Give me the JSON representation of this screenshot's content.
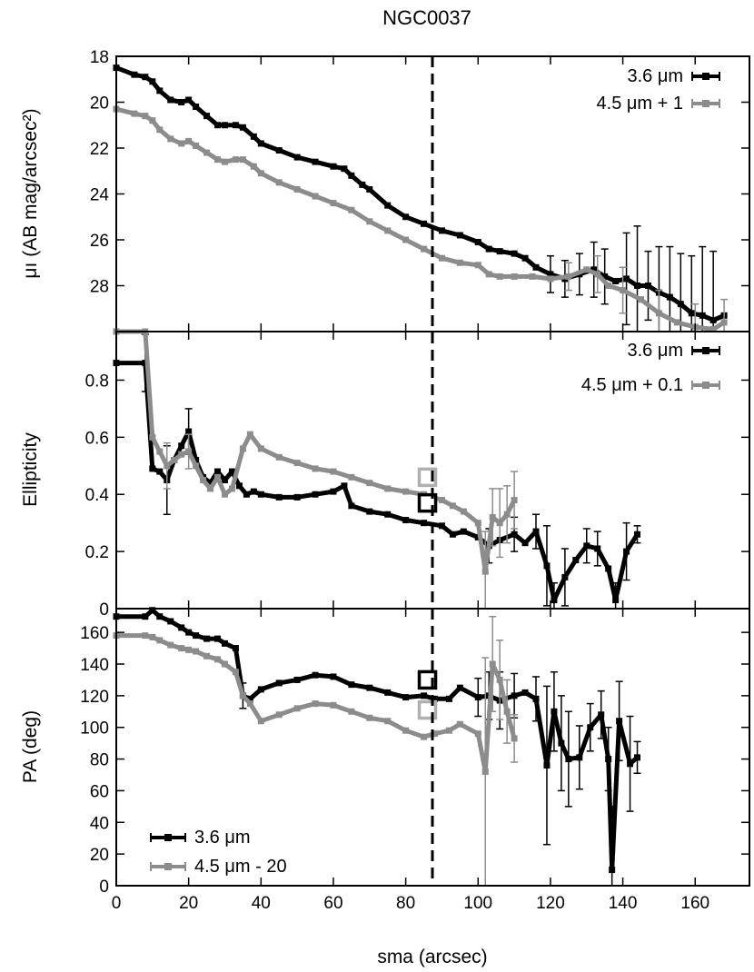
{
  "figure": {
    "title": "NGC0037"
  },
  "colors": {
    "ch1": "#000000",
    "ch2": "#8c8c8c",
    "ch1_box": "#000000",
    "ch2_box": "#b0b0b0"
  },
  "chart_data": [
    {
      "type": "line",
      "panel": "surface-brightness",
      "ylabel": "μı (AB mag/arcsec²)",
      "ylim": [
        30.0,
        18.0
      ],
      "y_inverted": true,
      "yticks": [
        18,
        20,
        22,
        24,
        26,
        28
      ],
      "ytick_labels": [
        "18",
        "20",
        "22",
        "24",
        "26",
        "28"
      ],
      "legend": {
        "position": "top-right",
        "entries": [
          "3.6 μm",
          "4.5 μm + 1"
        ]
      },
      "series": [
        {
          "name": "3.6 μm",
          "color": "#000000",
          "x": [
            0,
            5,
            8,
            10,
            12,
            15,
            18,
            20,
            22,
            25,
            28,
            30,
            33,
            35,
            38,
            40,
            45,
            50,
            55,
            60,
            63,
            65,
            68,
            70,
            75,
            80,
            85,
            90,
            95,
            100,
            103,
            106,
            110,
            113,
            116,
            120,
            124,
            128,
            132,
            135,
            138,
            141,
            144,
            147,
            150,
            153,
            156,
            159,
            162,
            165,
            168
          ],
          "y": [
            18.5,
            18.8,
            18.9,
            19.1,
            19.5,
            19.9,
            20.0,
            19.9,
            20.2,
            20.6,
            21.0,
            21.0,
            21.0,
            21.1,
            21.5,
            21.8,
            22.1,
            22.4,
            22.6,
            22.8,
            22.9,
            23.2,
            23.6,
            23.8,
            24.5,
            25.0,
            25.3,
            25.6,
            25.8,
            26.1,
            26.4,
            26.5,
            26.6,
            26.8,
            27.2,
            27.5,
            27.7,
            27.5,
            27.3,
            27.6,
            27.8,
            27.7,
            28.0,
            28.0,
            28.3,
            28.5,
            28.8,
            29.2,
            29.3,
            29.5,
            29.3
          ],
          "errorbars": [
            {
              "x": 120,
              "y": 27.5,
              "e": 0.8
            },
            {
              "x": 124,
              "y": 27.7,
              "e": 0.8
            },
            {
              "x": 128,
              "y": 27.5,
              "e": 0.9
            },
            {
              "x": 132,
              "y": 27.3,
              "e": 1.2
            },
            {
              "x": 135,
              "y": 27.6,
              "e": 1.2
            },
            {
              "x": 141,
              "y": 27.7,
              "e": 2.0
            },
            {
              "x": 144,
              "y": 28.0,
              "e": 2.6
            },
            {
              "x": 147,
              "y": 28.0,
              "e": 1.5
            },
            {
              "x": 150,
              "y": 28.3,
              "e": 2.0
            },
            {
              "x": 153,
              "y": 28.5,
              "e": 2.2
            },
            {
              "x": 156,
              "y": 28.8,
              "e": 2.2
            },
            {
              "x": 159,
              "y": 29.2,
              "e": 2.5
            },
            {
              "x": 162,
              "y": 29.3,
              "e": 3.0
            },
            {
              "x": 165,
              "y": 29.5,
              "e": 3.0
            }
          ]
        },
        {
          "name": "4.5 μm + 1",
          "color": "#8c8c8c",
          "x": [
            0,
            5,
            8,
            10,
            12,
            15,
            18,
            20,
            22,
            25,
            28,
            30,
            33,
            35,
            38,
            40,
            45,
            50,
            55,
            60,
            65,
            70,
            75,
            80,
            85,
            90,
            95,
            100,
            103,
            106,
            110,
            115,
            120,
            125,
            130,
            133,
            136,
            140,
            145,
            150,
            155,
            160,
            165,
            168
          ],
          "y": [
            20.3,
            20.5,
            20.6,
            20.8,
            21.2,
            21.6,
            21.8,
            21.7,
            21.9,
            22.2,
            22.5,
            22.6,
            22.5,
            22.5,
            22.8,
            23.1,
            23.5,
            23.8,
            24.1,
            24.4,
            24.7,
            25.2,
            25.6,
            26.0,
            26.4,
            26.8,
            27.0,
            27.1,
            27.5,
            27.6,
            27.6,
            27.6,
            27.7,
            27.6,
            27.3,
            27.5,
            28.0,
            28.2,
            28.6,
            29.2,
            29.6,
            29.8,
            29.9,
            29.6
          ],
          "errorbars": [
            {
              "x": 125,
              "y": 27.6,
              "e": 0.6
            },
            {
              "x": 133,
              "y": 27.5,
              "e": 0.8
            },
            {
              "x": 140,
              "y": 28.2,
              "e": 1.0
            },
            {
              "x": 150,
              "y": 29.2,
              "e": 1.0
            },
            {
              "x": 160,
              "y": 29.8,
              "e": 1.0
            },
            {
              "x": 168,
              "y": 29.6,
              "e": 1.0
            }
          ]
        }
      ]
    },
    {
      "type": "line",
      "panel": "ellipticity",
      "ylabel": "Ellipticity",
      "ylim": [
        0.0,
        0.97
      ],
      "yticks": [
        0,
        0.2,
        0.4,
        0.6,
        0.8
      ],
      "ytick_labels": [
        "0",
        "0.2",
        "0.4",
        "0.6",
        "0.8"
      ],
      "legend": {
        "position": "top-right",
        "entries": [
          "3.6 μm",
          "4.5 μm + 0.1"
        ]
      },
      "markers": [
        {
          "x": 86,
          "y": 0.37,
          "series": "3.6 μm"
        },
        {
          "x": 86,
          "y": 0.46,
          "series": "4.5 μm + 0.1"
        }
      ],
      "series": [
        {
          "name": "3.6 μm",
          "color": "#000000",
          "x": [
            0,
            8,
            10,
            12,
            14,
            16,
            18,
            20,
            22,
            24,
            26,
            28,
            30,
            32,
            34,
            36,
            38,
            40,
            45,
            50,
            55,
            60,
            63,
            65,
            70,
            75,
            80,
            85,
            90,
            93,
            96,
            100,
            103,
            106,
            110,
            113,
            116,
            119,
            121,
            124,
            127,
            130,
            133,
            136,
            138,
            141,
            144
          ],
          "y": [
            0.86,
            0.86,
            0.49,
            0.48,
            0.45,
            0.52,
            0.57,
            0.62,
            0.52,
            0.46,
            0.44,
            0.48,
            0.45,
            0.48,
            0.43,
            0.4,
            0.41,
            0.4,
            0.39,
            0.39,
            0.4,
            0.41,
            0.43,
            0.36,
            0.34,
            0.33,
            0.31,
            0.3,
            0.29,
            0.26,
            0.27,
            0.25,
            0.22,
            0.24,
            0.26,
            0.23,
            0.27,
            0.15,
            0.03,
            0.11,
            0.17,
            0.22,
            0.21,
            0.14,
            0.03,
            0.2,
            0.26
          ],
          "errorbars": [
            {
              "x": 8,
              "y": 0.86,
              "e": 0.1
            },
            {
              "x": 14,
              "y": 0.45,
              "e": 0.12
            },
            {
              "x": 20,
              "y": 0.62,
              "e": 0.08
            },
            {
              "x": 103,
              "y": 0.22,
              "e": 0.06
            },
            {
              "x": 110,
              "y": 0.26,
              "e": 0.06
            },
            {
              "x": 116,
              "y": 0.27,
              "e": 0.06
            },
            {
              "x": 119,
              "y": 0.15,
              "e": 0.14
            },
            {
              "x": 121,
              "y": 0.03,
              "e": 0.06
            },
            {
              "x": 124,
              "y": 0.11,
              "e": 0.1
            },
            {
              "x": 130,
              "y": 0.22,
              "e": 0.06
            },
            {
              "x": 133,
              "y": 0.21,
              "e": 0.06
            },
            {
              "x": 138,
              "y": 0.03,
              "e": 0.06
            },
            {
              "x": 141,
              "y": 0.2,
              "e": 0.1
            },
            {
              "x": 144,
              "y": 0.26,
              "e": 0.03
            }
          ]
        },
        {
          "name": "4.5 μm + 0.1",
          "color": "#8c8c8c",
          "x": [
            0,
            8,
            10,
            12,
            14,
            16,
            18,
            20,
            22,
            24,
            26,
            28,
            30,
            32,
            35,
            37,
            40,
            45,
            50,
            55,
            60,
            65,
            70,
            75,
            80,
            85,
            90,
            93,
            96,
            100,
            102,
            104,
            106,
            108,
            110
          ],
          "y": [
            0.97,
            0.97,
            0.6,
            0.55,
            0.5,
            0.52,
            0.54,
            0.55,
            0.5,
            0.45,
            0.42,
            0.46,
            0.4,
            0.42,
            0.56,
            0.61,
            0.56,
            0.53,
            0.51,
            0.49,
            0.48,
            0.46,
            0.44,
            0.42,
            0.41,
            0.4,
            0.38,
            0.36,
            0.34,
            0.3,
            0.13,
            0.32,
            0.3,
            0.33,
            0.38
          ],
          "errorbars": [
            {
              "x": 14,
              "y": 0.5,
              "e": 0.08
            },
            {
              "x": 20,
              "y": 0.55,
              "e": 0.06
            },
            {
              "x": 102,
              "y": 0.13,
              "e": 0.14
            },
            {
              "x": 104,
              "y": 0.32,
              "e": 0.1
            },
            {
              "x": 106,
              "y": 0.3,
              "e": 0.12
            },
            {
              "x": 108,
              "y": 0.33,
              "e": 0.1
            },
            {
              "x": 110,
              "y": 0.38,
              "e": 0.1
            }
          ]
        }
      ]
    },
    {
      "type": "line",
      "panel": "position-angle",
      "xlabel": "sma (arcsec)",
      "ylabel": "PA (deg)",
      "xlim": [
        0,
        175
      ],
      "ylim": [
        0,
        175
      ],
      "xticks": [
        0,
        20,
        40,
        60,
        80,
        100,
        120,
        140,
        160
      ],
      "xtick_labels": [
        "0",
        "20",
        "40",
        "60",
        "80",
        "100",
        "120",
        "140",
        "160"
      ],
      "yticks": [
        0,
        20,
        40,
        60,
        80,
        100,
        120,
        140,
        160
      ],
      "ytick_labels": [
        "0",
        "20",
        "40",
        "60",
        "80",
        "100",
        "120",
        "140",
        "160"
      ],
      "legend": {
        "position": "bottom-left",
        "entries": [
          "3.6 μm",
          "4.5 μm - 20"
        ]
      },
      "markers": [
        {
          "x": 86,
          "y": 130,
          "series": "3.6 μm"
        },
        {
          "x": 86,
          "y": 111,
          "series": "4.5 μm - 20"
        }
      ],
      "series": [
        {
          "name": "3.6 μm",
          "color": "#000000",
          "x": [
            0,
            8,
            10,
            12,
            15,
            18,
            20,
            22,
            25,
            28,
            30,
            33,
            35,
            37,
            40,
            45,
            50,
            55,
            60,
            65,
            70,
            75,
            80,
            85,
            88,
            92,
            95,
            100,
            103,
            106,
            110,
            113,
            116,
            119,
            121,
            123,
            125,
            128,
            131,
            134,
            136,
            137,
            139,
            142,
            144
          ],
          "y": [
            170,
            170,
            174,
            170,
            167,
            163,
            160,
            158,
            156,
            156,
            153,
            150,
            120,
            118,
            124,
            128,
            130,
            133,
            132,
            127,
            125,
            122,
            119,
            120,
            118,
            118,
            125,
            119,
            120,
            117,
            120,
            122,
            118,
            76,
            110,
            90,
            80,
            81,
            100,
            108,
            80,
            10,
            104,
            77,
            81
          ],
          "errorbars": [
            {
              "x": 35,
              "y": 120,
              "e": 8
            },
            {
              "x": 100,
              "y": 119,
              "e": 12
            },
            {
              "x": 103,
              "y": 120,
              "e": 15
            },
            {
              "x": 106,
              "y": 117,
              "e": 18
            },
            {
              "x": 110,
              "y": 120,
              "e": 14
            },
            {
              "x": 116,
              "y": 118,
              "e": 14
            },
            {
              "x": 119,
              "y": 76,
              "e": 50
            },
            {
              "x": 121,
              "y": 110,
              "e": 25
            },
            {
              "x": 123,
              "y": 90,
              "e": 30
            },
            {
              "x": 125,
              "y": 80,
              "e": 30
            },
            {
              "x": 128,
              "y": 81,
              "e": 20
            },
            {
              "x": 131,
              "y": 100,
              "e": 15
            },
            {
              "x": 134,
              "y": 108,
              "e": 15
            },
            {
              "x": 136,
              "y": 80,
              "e": 20
            },
            {
              "x": 137,
              "y": 10,
              "e": 40
            },
            {
              "x": 139,
              "y": 104,
              "e": 25
            },
            {
              "x": 142,
              "y": 77,
              "e": 30
            },
            {
              "x": 144,
              "y": 81,
              "e": 10
            }
          ]
        },
        {
          "name": "4.5 μm - 20",
          "color": "#8c8c8c",
          "x": [
            0,
            8,
            10,
            12,
            15,
            18,
            20,
            22,
            25,
            28,
            30,
            33,
            35,
            37,
            40,
            45,
            50,
            55,
            60,
            65,
            70,
            75,
            80,
            85,
            88,
            92,
            95,
            100,
            102,
            104,
            106,
            108,
            110
          ],
          "y": [
            158,
            158,
            157,
            155,
            152,
            150,
            149,
            148,
            145,
            143,
            140,
            135,
            120,
            115,
            104,
            108,
            112,
            115,
            114,
            110,
            106,
            104,
            98,
            94,
            96,
            98,
            102,
            96,
            72,
            140,
            130,
            110,
            93
          ],
          "errorbars": [
            {
              "x": 102,
              "y": 72,
              "e": 72
            },
            {
              "x": 104,
              "y": 140,
              "e": 30
            },
            {
              "x": 106,
              "y": 130,
              "e": 25
            },
            {
              "x": 108,
              "y": 110,
              "e": 20
            },
            {
              "x": 110,
              "y": 93,
              "e": 15
            }
          ]
        }
      ]
    }
  ]
}
